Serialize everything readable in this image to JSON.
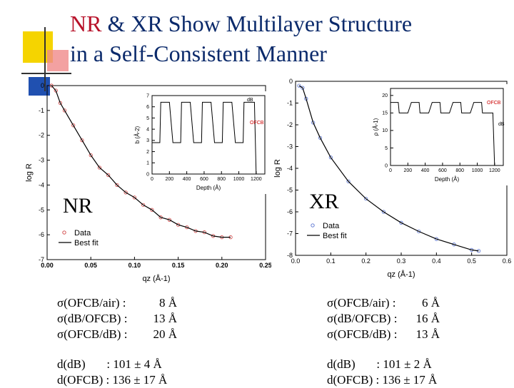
{
  "slide": {
    "title_line1_prefix": "NR",
    "title_line1_rest": " & XR Show Multilayer Structure",
    "title_line2": "in a Self-Consistent Manner",
    "colors": {
      "title": "#0b2a6b",
      "accent": "#b8122a",
      "deco_yellow": "#f5d400",
      "deco_red": "#e05050",
      "deco_blue": "#2050b0"
    }
  },
  "panels": {
    "nr_label": "NR",
    "xr_label": "XR"
  },
  "nr_params": {
    "sigma": [
      {
        "key": "σ(OFCB/air) :",
        "value": "8 Å"
      },
      {
        "key": "σ(dB/OFCB) :",
        "value": "13 Å"
      },
      {
        "key": "σ(OFCB/dB) :",
        "value": "20 Å"
      }
    ],
    "d_db": "d(dB)       : 101 ± 4 Å",
    "d_ofcb": "d(OFCB) : 136 ± 17 Å"
  },
  "xr_params": {
    "sigma": [
      {
        "key": "σ(OFCB/air) :",
        "value": "6 Å"
      },
      {
        "key": "σ(dB/OFCB) :",
        "value": "16 Å"
      },
      {
        "key": "σ(OFCB/dB) :",
        "value": "13 Å"
      }
    ],
    "d_db": "d(dB)       : 101 ± 2 Å",
    "d_ofcb": "d(OFCB) : 136 ± 17 Å"
  },
  "chart_data": [
    {
      "type": "line",
      "panel": "NR main",
      "xlabel": "qz (Å-1)",
      "ylabel": "log R",
      "xlim": [
        0.0,
        0.25
      ],
      "ylim": [
        -7,
        0
      ],
      "xticks": [
        "0.00",
        "0.05",
        "0.10",
        "0.15",
        "0.20",
        "0.25"
      ],
      "yticks": [
        "0",
        "-1",
        "-2",
        "-3",
        "-4",
        "-5",
        "-6",
        "-7"
      ],
      "legend": {
        "placement": "bottom-left",
        "entries": [
          "Data",
          "Best fit"
        ]
      },
      "series": [
        {
          "name": "Data",
          "x": [
            0.005,
            0.01,
            0.015,
            0.02,
            0.03,
            0.04,
            0.05,
            0.06,
            0.07,
            0.08,
            0.09,
            0.1,
            0.11,
            0.12,
            0.13,
            0.14,
            0.15,
            0.16,
            0.17,
            0.18,
            0.19,
            0.2,
            0.21
          ],
          "y": [
            0.0,
            -0.2,
            -0.7,
            -1.0,
            -1.6,
            -2.2,
            -2.8,
            -3.3,
            -3.6,
            -4.0,
            -4.3,
            -4.5,
            -4.8,
            -5.0,
            -5.3,
            -5.4,
            -5.6,
            -5.7,
            -5.85,
            -5.9,
            -6.05,
            -6.1,
            -6.1
          ]
        },
        {
          "name": "Best fit",
          "x": [
            0.005,
            0.01,
            0.015,
            0.02,
            0.03,
            0.04,
            0.05,
            0.06,
            0.07,
            0.08,
            0.09,
            0.1,
            0.11,
            0.12,
            0.13,
            0.14,
            0.15,
            0.16,
            0.17,
            0.18,
            0.19,
            0.2,
            0.21
          ],
          "y": [
            0.0,
            -0.2,
            -0.7,
            -1.0,
            -1.6,
            -2.2,
            -2.8,
            -3.3,
            -3.6,
            -4.0,
            -4.3,
            -4.5,
            -4.8,
            -5.0,
            -5.3,
            -5.4,
            -5.6,
            -5.7,
            -5.85,
            -5.9,
            -6.05,
            -6.1,
            -6.1
          ]
        }
      ]
    },
    {
      "type": "line",
      "panel": "NR inset",
      "xlabel": "Depth (Å)",
      "ylabel": "b (Å-2)",
      "xlim": [
        0,
        1300
      ],
      "ylim": [
        0,
        7
      ],
      "xticks": [
        "0",
        "200",
        "400",
        "600",
        "800",
        "1000",
        "1200"
      ],
      "yticks": [
        "0",
        "1",
        "2",
        "3",
        "4",
        "5",
        "6",
        "7"
      ],
      "annotations": [
        "dB",
        "OFCB"
      ],
      "series": [
        {
          "x": [
            0,
            90,
            100,
            200,
            240,
            330,
            340,
            440,
            480,
            570,
            580,
            680,
            720,
            810,
            820,
            920,
            960,
            1050,
            1060,
            1160,
            1180,
            1200
          ],
          "y": [
            2.8,
            2.8,
            6.4,
            6.4,
            2.8,
            2.8,
            6.4,
            6.4,
            2.8,
            2.8,
            6.4,
            6.4,
            2.8,
            2.8,
            6.4,
            6.4,
            2.8,
            2.8,
            6.4,
            6.4,
            6.4,
            0.0
          ]
        }
      ]
    },
    {
      "type": "line",
      "panel": "XR main",
      "xlabel": "qz (Å-1)",
      "ylabel": "log R",
      "xlim": [
        0.0,
        0.6
      ],
      "ylim": [
        -8,
        0
      ],
      "xticks": [
        "0.0",
        "0.1",
        "0.2",
        "0.3",
        "0.4",
        "0.5",
        "0.6"
      ],
      "yticks": [
        "0",
        "-1",
        "-2",
        "-3",
        "-4",
        "-5",
        "-6",
        "-7",
        "-8"
      ],
      "legend": {
        "placement": "bottom-left",
        "entries": [
          "Data",
          "Best fit"
        ]
      },
      "series": [
        {
          "name": "Data",
          "x": [
            0.01,
            0.02,
            0.03,
            0.05,
            0.07,
            0.1,
            0.15,
            0.2,
            0.25,
            0.3,
            0.35,
            0.4,
            0.45,
            0.5,
            0.52
          ],
          "y": [
            -0.2,
            -0.3,
            -0.8,
            -1.9,
            -2.6,
            -3.5,
            -4.6,
            -5.4,
            -6.0,
            -6.5,
            -6.9,
            -7.25,
            -7.5,
            -7.75,
            -7.8
          ]
        },
        {
          "name": "Best fit",
          "x": [
            0.01,
            0.02,
            0.03,
            0.05,
            0.07,
            0.1,
            0.15,
            0.2,
            0.25,
            0.3,
            0.35,
            0.4,
            0.45,
            0.5,
            0.52
          ],
          "y": [
            -0.2,
            -0.3,
            -0.8,
            -1.9,
            -2.6,
            -3.5,
            -4.6,
            -5.4,
            -6.0,
            -6.5,
            -6.9,
            -7.25,
            -7.5,
            -7.75,
            -7.8
          ]
        }
      ]
    },
    {
      "type": "line",
      "panel": "XR inset",
      "xlabel": "Depth (Å)",
      "ylabel": "ρ (Å-1)",
      "xlim": [
        0,
        1300
      ],
      "ylim": [
        0,
        22
      ],
      "xticks": [
        "0",
        "200",
        "400",
        "600",
        "800",
        "1000",
        "1200"
      ],
      "yticks": [
        "0",
        "5",
        "10",
        "15",
        "20"
      ],
      "annotations": [
        "OFCB",
        "dB"
      ],
      "series": [
        {
          "x": [
            0,
            90,
            100,
            200,
            240,
            330,
            340,
            440,
            480,
            570,
            580,
            680,
            720,
            810,
            820,
            920,
            960,
            1050,
            1060,
            1160,
            1180,
            1200
          ],
          "y": [
            18,
            18,
            15,
            15,
            18,
            18,
            15,
            15,
            18,
            18,
            15,
            15,
            18,
            18,
            15,
            15,
            18,
            18,
            15,
            15,
            15,
            0
          ]
        }
      ]
    }
  ]
}
